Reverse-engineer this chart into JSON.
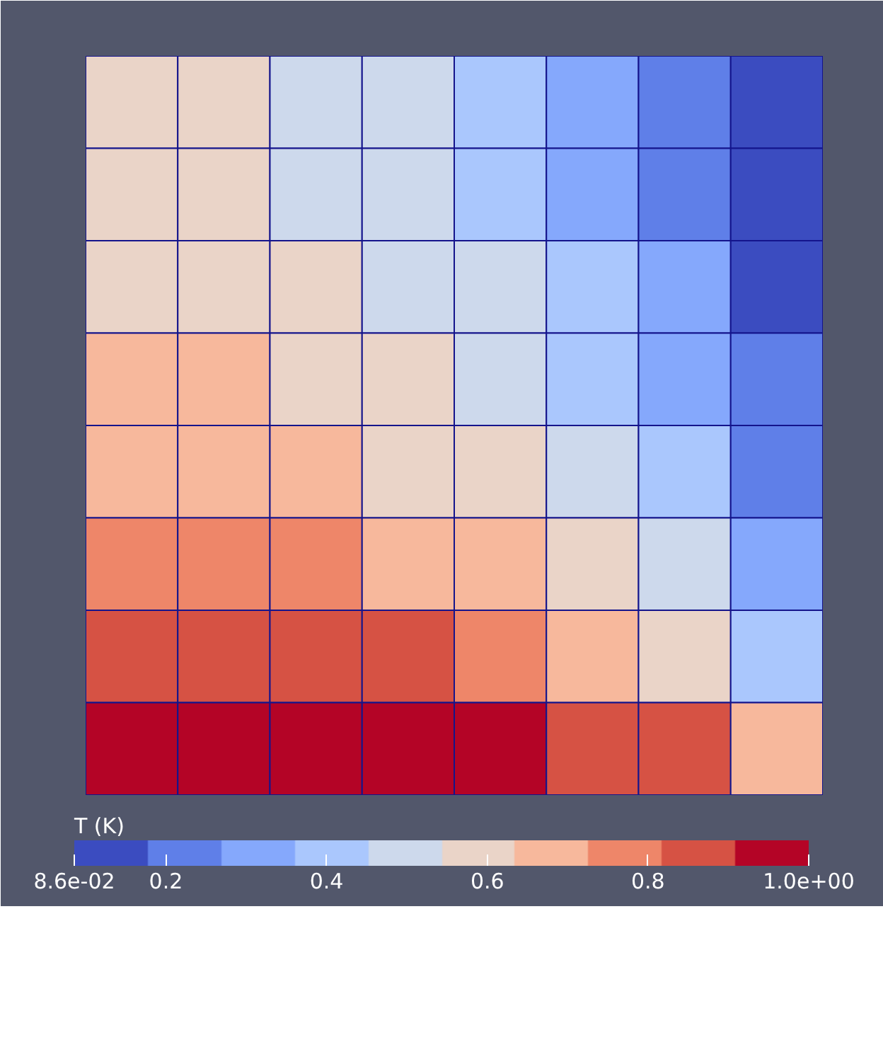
{
  "chart_data": {
    "type": "heatmap",
    "clabel": "T (K)",
    "categories": [
      null,
      null,
      null,
      null,
      null,
      null,
      null,
      null
    ],
    "y_categories": [
      null,
      null,
      null,
      null,
      null,
      null,
      null,
      null
    ],
    "cells": [
      [
        0.59,
        0.59,
        0.5,
        0.5,
        0.41,
        0.31,
        0.22,
        0.13
      ],
      [
        0.59,
        0.59,
        0.5,
        0.5,
        0.41,
        0.31,
        0.22,
        0.13
      ],
      [
        0.59,
        0.59,
        0.59,
        0.5,
        0.5,
        0.41,
        0.31,
        0.13
      ],
      [
        0.68,
        0.68,
        0.59,
        0.59,
        0.5,
        0.41,
        0.31,
        0.22
      ],
      [
        0.68,
        0.68,
        0.68,
        0.59,
        0.59,
        0.5,
        0.41,
        0.22
      ],
      [
        0.77,
        0.77,
        0.77,
        0.68,
        0.68,
        0.59,
        0.5,
        0.31
      ],
      [
        0.86,
        0.86,
        0.86,
        0.86,
        0.77,
        0.68,
        0.59,
        0.41
      ],
      [
        0.95,
        0.95,
        0.95,
        0.95,
        0.95,
        0.86,
        0.86,
        0.68
      ]
    ],
    "clim": [
      0.086,
      1.0
    ],
    "cticks": [
      {
        "value": 0.086,
        "label": "8.6e-02"
      },
      0.2,
      0.4,
      0.6,
      0.8,
      {
        "value": 1.0,
        "label": "1.0e+00"
      }
    ],
    "tick_labels": false
  }
}
